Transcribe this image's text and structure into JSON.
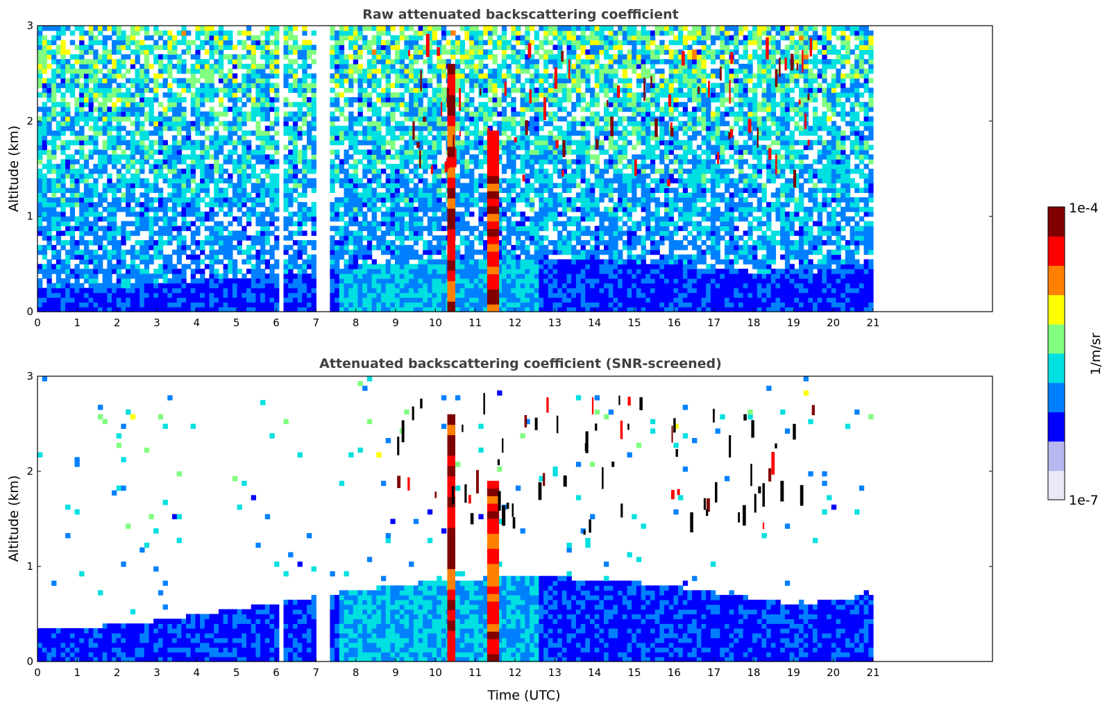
{
  "chart_data": [
    {
      "type": "heatmap",
      "title": "Raw attenuated backscattering coefficient",
      "xlabel": "",
      "ylabel": "Altitude (km)",
      "xlim": [
        0,
        24
      ],
      "ylim": [
        0,
        3
      ],
      "x_ticks": [
        "0",
        "1",
        "2",
        "3",
        "4",
        "5",
        "6",
        "7",
        "8",
        "9",
        "10",
        "11",
        "12",
        "13",
        "14",
        "15",
        "16",
        "17",
        "18",
        "19",
        "20",
        "21"
      ],
      "y_ticks": [
        "0",
        "1",
        "2",
        "3"
      ],
      "data_extent_hours": [
        0,
        21
      ],
      "data_gaps_hours": [
        [
          6.1,
          6.2
        ],
        [
          7.05,
          7.3
        ]
      ],
      "features": [
        {
          "kind": "boundary_layer",
          "x_range": [
            0,
            21
          ],
          "top_km": [
            0.2,
            0.6
          ],
          "level": "low"
        },
        {
          "kind": "plume",
          "x_range": [
            10.3,
            10.5
          ],
          "alt_km": [
            0,
            2.6
          ],
          "level": "high"
        },
        {
          "kind": "plume",
          "x_range": [
            11.3,
            11.6
          ],
          "alt_km": [
            0,
            1.9
          ],
          "level": "high"
        },
        {
          "kind": "cloud_fragments",
          "x_range": [
            9,
            19.5
          ],
          "alt_km": [
            1.3,
            2.7
          ],
          "level": "high"
        }
      ]
    },
    {
      "type": "heatmap",
      "title": "Attenuated backscattering coefficient (SNR-screened)",
      "xlabel": "Time (UTC)",
      "ylabel": "Altitude (km)",
      "xlim": [
        0,
        24
      ],
      "ylim": [
        0,
        3
      ],
      "x_ticks": [
        "0",
        "1",
        "2",
        "3",
        "4",
        "5",
        "6",
        "7",
        "8",
        "9",
        "10",
        "11",
        "12",
        "13",
        "14",
        "15",
        "16",
        "17",
        "18",
        "19",
        "20",
        "21"
      ],
      "y_ticks": [
        "0",
        "1",
        "2",
        "3"
      ],
      "data_extent_hours": [
        0,
        21
      ],
      "data_gaps_hours": [
        [
          6.1,
          6.2
        ],
        [
          7.05,
          7.3
        ]
      ],
      "features": [
        {
          "kind": "boundary_layer",
          "x_range": [
            0,
            21
          ],
          "top_km": [
            0.3,
            1.0
          ],
          "level": "low"
        },
        {
          "kind": "plume",
          "x_range": [
            10.3,
            10.5
          ],
          "alt_km": [
            0,
            2.6
          ],
          "level": "high"
        },
        {
          "kind": "plume",
          "x_range": [
            11.3,
            11.6
          ],
          "alt_km": [
            0,
            1.9
          ],
          "level": "high"
        },
        {
          "kind": "cloud_fragments",
          "x_range": [
            9,
            19.5
          ],
          "alt_km": [
            1.3,
            2.7
          ],
          "level": "saturated"
        }
      ]
    }
  ],
  "colorbar": {
    "min_label": "1e-7",
    "max_label": "1e-4",
    "unit_label": "1/m/sr",
    "colormap": [
      "#e8e8f8",
      "#b8b8f0",
      "#0000ff",
      "#0080ff",
      "#00e0e0",
      "#80ff80",
      "#ffff00",
      "#ff8000",
      "#ff0000",
      "#800000"
    ],
    "saturated_color": "#000000"
  }
}
